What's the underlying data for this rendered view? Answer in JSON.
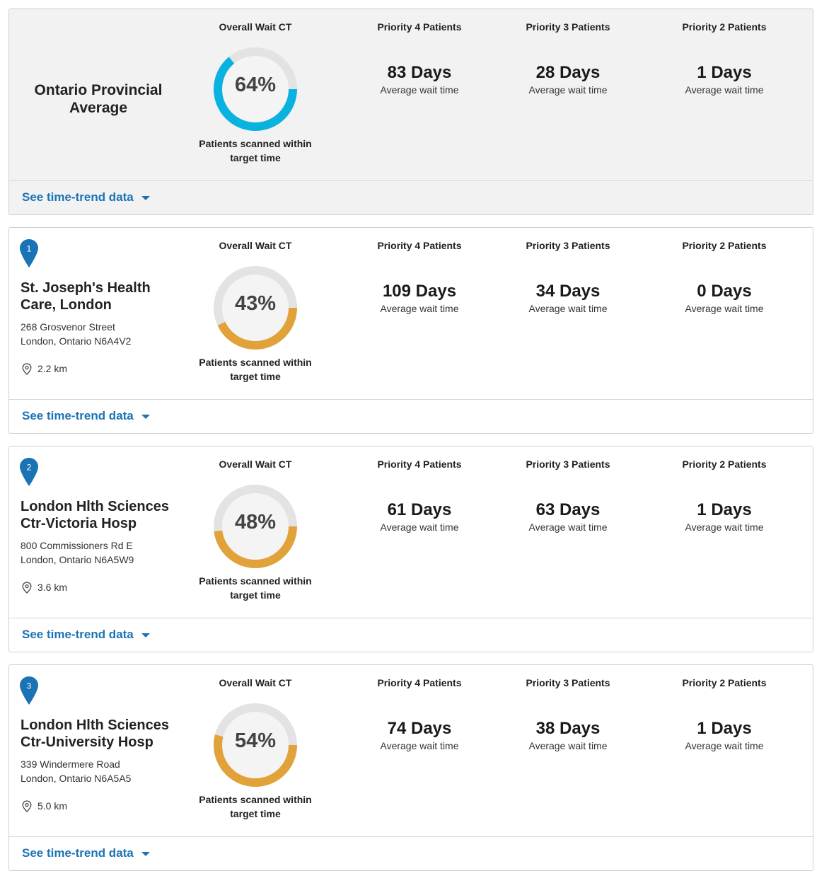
{
  "labels": {
    "overall": "Overall Wait CT",
    "p4": "Priority 4 Patients",
    "p3": "Priority 3 Patients",
    "p2": "Priority 2 Patients",
    "avg": "Average wait time",
    "scanned": "Patients scanned within target time",
    "trend": "See time-trend data"
  },
  "colors": {
    "provincial_ring": "#0ab2e0",
    "hospital_ring": "#e1a23a",
    "ring_track": "#e3e3e3",
    "link": "#1a73b5",
    "marker": "#1a73b5"
  },
  "provincial": {
    "title": "Ontario Provincial Average",
    "percent_label": "64%",
    "percent": 64,
    "p4": "83 Days",
    "p3": "28 Days",
    "p2": "1 Days"
  },
  "hospitals": [
    {
      "rank": "1",
      "name": "St. Joseph's Health Care, London",
      "address1": "268 Grosvenor Street",
      "address2": "London, Ontario N6A4V2",
      "distance": "2.2 km",
      "percent_label": "43%",
      "percent": 43,
      "p4": "109 Days",
      "p3": "34 Days",
      "p2": "0 Days"
    },
    {
      "rank": "2",
      "name": "London Hlth Sciences Ctr-Victoria Hosp",
      "address1": "800 Commissioners Rd E",
      "address2": "London, Ontario N6A5W9",
      "distance": "3.6 km",
      "percent_label": "48%",
      "percent": 48,
      "p4": "61 Days",
      "p3": "63 Days",
      "p2": "1 Days"
    },
    {
      "rank": "3",
      "name": "London Hlth Sciences Ctr-University Hosp",
      "address1": "339 Windermere Road",
      "address2": "London, Ontario N6A5A5",
      "distance": "5.0 km",
      "percent_label": "54%",
      "percent": 54,
      "p4": "74 Days",
      "p3": "38 Days",
      "p2": "1 Days"
    }
  ]
}
